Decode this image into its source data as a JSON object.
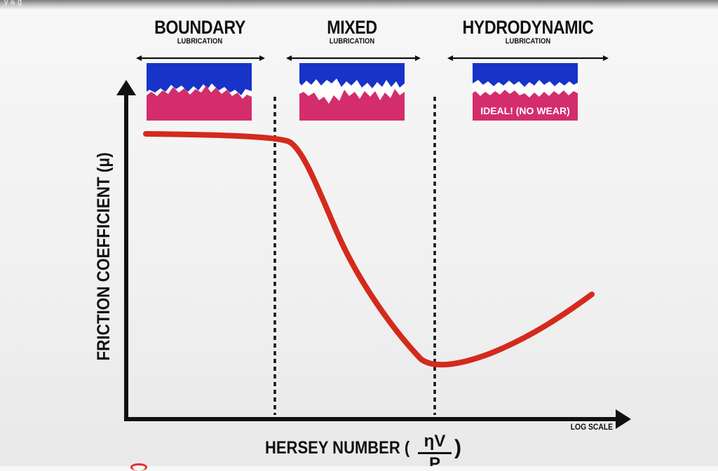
{
  "video": {
    "title": "y & g"
  },
  "regimes": [
    {
      "title": "BOUNDARY",
      "subtitle": "LUBRICATION"
    },
    {
      "title": "MIXED",
      "subtitle": "LUBRICATION"
    },
    {
      "title": "HYDRODYNAMIC",
      "subtitle": "LUBRICATION"
    }
  ],
  "hydrodynamic_badge": "IDEAL! (NO WEAR)",
  "axes": {
    "y_label": "FRICTION COEFFICIENT (μ)",
    "x_label": "HERSEY NUMBER (",
    "x_fraction_numerator": "ηV",
    "x_fraction_denominator": "P",
    "x_label_close": ")",
    "x_scale_note": "LOG SCALE"
  },
  "colors": {
    "curve": "#d42a1c",
    "upper_surface": "#1733c8",
    "lower_surface": "#d42d6c",
    "lubricant_gap": "#ffffff",
    "axis": "#111111"
  }
}
